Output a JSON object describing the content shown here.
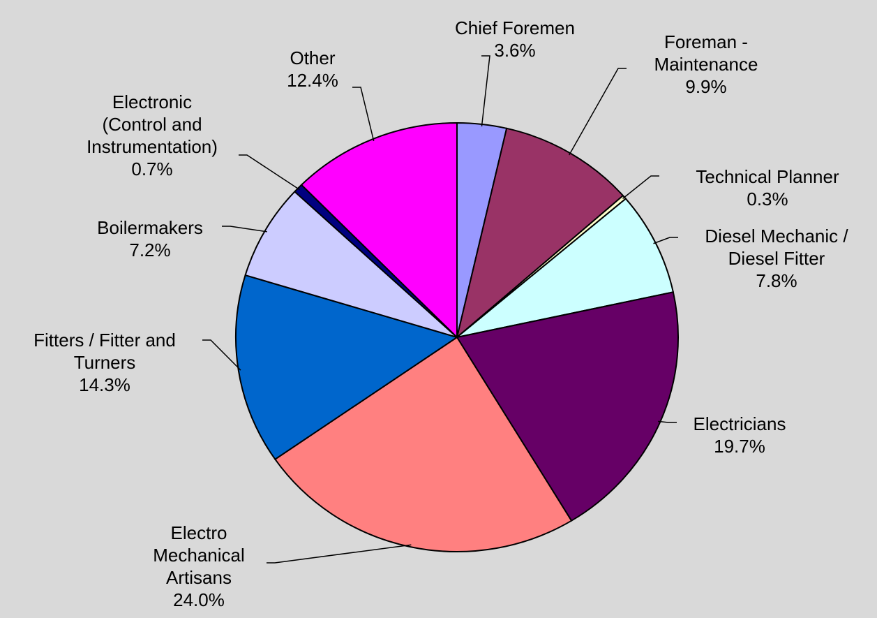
{
  "chart_data": {
    "type": "pie",
    "categories": [
      "Chief Foremen",
      "Foreman - Maintenance",
      "Technical Planner",
      "Diesel Mechanic / Diesel Fitter",
      "Electricians",
      "Electro Mechanical Artisans",
      "Fitters / Fitter and Turners",
      "Boilermakers",
      "Electronic (Control and Instrumentation)",
      "Other"
    ],
    "values": [
      3.6,
      9.9,
      0.3,
      7.8,
      19.7,
      24.0,
      14.3,
      7.2,
      0.7,
      12.4
    ],
    "value_labels": [
      "3.6%",
      "9.9%",
      "0.3%",
      "7.8%",
      "19.7%",
      "24.0%",
      "14.3%",
      "7.2%",
      "0.7%",
      "12.4%"
    ],
    "colors": [
      "#9999ff",
      "#993366",
      "#ffffcc",
      "#ccffff",
      "#660066",
      "#ff8080",
      "#0066cc",
      "#ccccff",
      "#000080",
      "#ff00ff"
    ]
  }
}
